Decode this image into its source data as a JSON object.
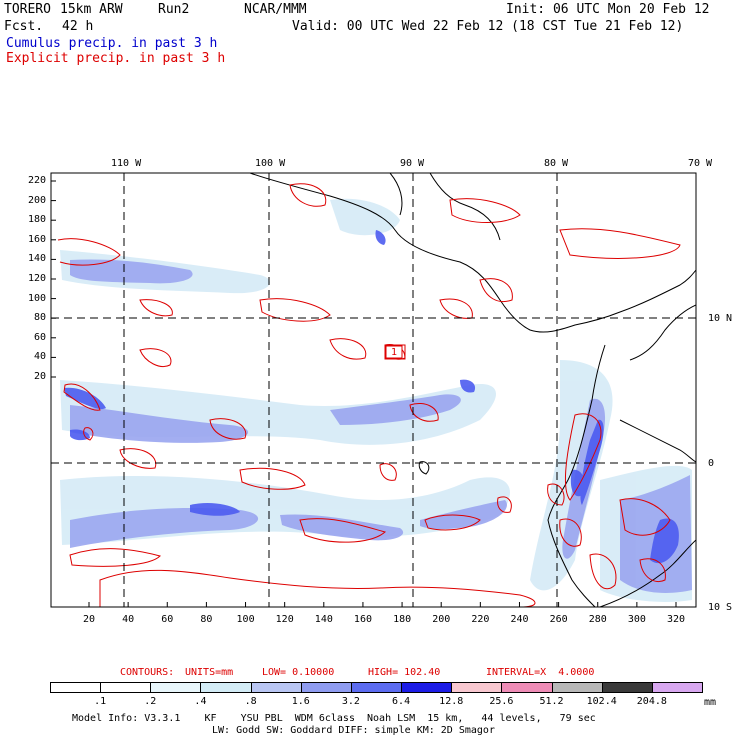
{
  "header": {
    "model": "TORERO",
    "resolution": "15km ARW",
    "run": "Run2",
    "org": "NCAR/MMM",
    "fcst_label": "Fcst.",
    "fcst_value": "42 h",
    "init": "Init: 06 UTC Mon 20 Feb 12",
    "valid": "Valid: 00 UTC Wed 22 Feb 12 (18 CST Tue 21 Feb 12)",
    "cumulus_title": "Cumulus precip. in past 3 h",
    "explicit_title": "Explicit precip. in past 3 h"
  },
  "map": {
    "lon_labels_top": [
      "110 W",
      "100 W",
      "90 W",
      "80 W",
      "70 W"
    ],
    "lat_labels_right": [
      "10 N",
      "0",
      "10 S"
    ],
    "y_ticks": [
      "220",
      "200",
      "180",
      "160",
      "140",
      "120",
      "100",
      "80",
      "60",
      "40",
      "20"
    ],
    "x_ticks": [
      "20",
      "40",
      "60",
      "80",
      "100",
      "120",
      "140",
      "160",
      "180",
      "200",
      "220",
      "240",
      "260",
      "280",
      "300",
      "320"
    ],
    "contour_label": "1",
    "colors": {
      "contour": "#dd0000",
      "coast": "#000000",
      "grid": "#000000",
      "cumulus_light": "#d7ecf7",
      "cumulus_mid": "#9aa6f0",
      "cumulus_dark": "#4c5cf0"
    }
  },
  "contours_info": {
    "label": "CONTOURS:",
    "units": "UNITS=mm",
    "low": "LOW= 0.10000",
    "high": "HIGH= 102.40",
    "interval": "INTERVAL=X  4.0000"
  },
  "colorbar": {
    "unit": "mm",
    "labels": [
      ".1",
      ".2",
      ".4",
      ".8",
      "1.6",
      "3.2",
      "6.4",
      "12.8",
      "25.6",
      "51.2",
      "102.4",
      "204.8"
    ],
    "colors": [
      "#ffffff",
      "#ffffff",
      "#e8f6fb",
      "#d3ecf6",
      "#b9c6f3",
      "#8f9cf0",
      "#5c6cf0",
      "#1c1ce6",
      "#f8c8d0",
      "#ee8cb6",
      "#b8b8b8",
      "#3a3a3a",
      "#d8a8f0"
    ]
  },
  "footer": {
    "line1": "Model Info: V3.3.1    KF    YSU PBL  WDM 6class  Noah LSM  15 km,   44 levels,   79 sec",
    "line2": "LW: Godd SW: Goddard DIFF: simple KM: 2D Smagor"
  }
}
